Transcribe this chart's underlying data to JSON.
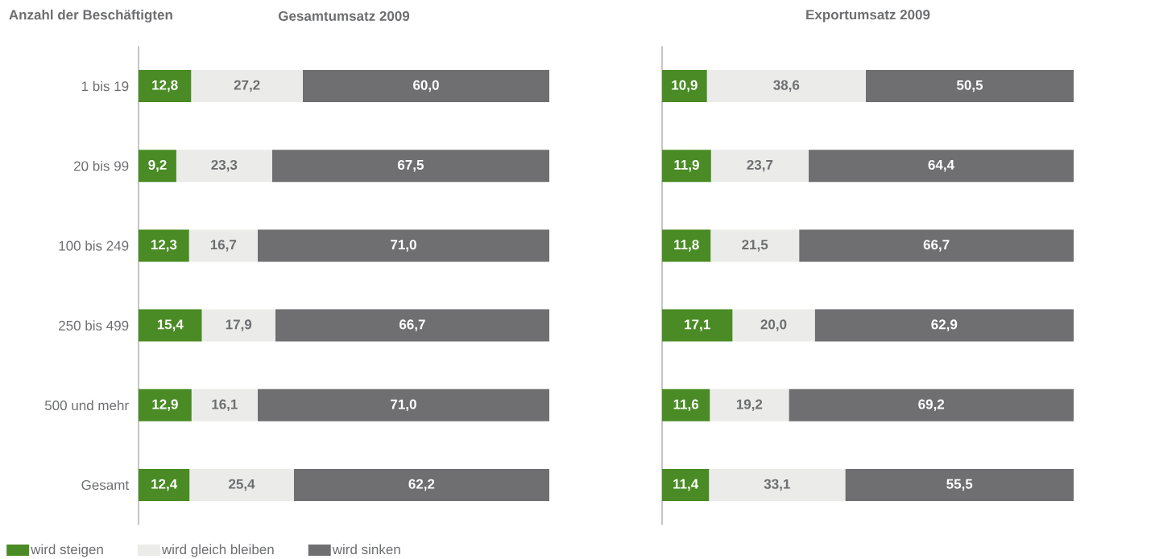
{
  "chart_data": [
    {
      "type": "bar",
      "orientation": "horizontal",
      "stacked": true,
      "title": "Gesamtumsatz 2009",
      "ylabel": "Anzahl der Beschäftigten",
      "categories": [
        "1 bis 19",
        "20 bis 99",
        "100 bis 249",
        "250 bis 499",
        "500 und mehr",
        "Gesamt"
      ],
      "tick_labels": "y",
      "legend": "bottom",
      "series": [
        {
          "name": "wird steigen",
          "color": "#4a8b25",
          "values": [
            12.8,
            9.2,
            12.3,
            15.4,
            12.9,
            12.4
          ],
          "value_labels": [
            "12,8",
            "9,2",
            "12,3",
            "15,4",
            "12,9",
            "12,4"
          ]
        },
        {
          "name": "wird gleich bleiben",
          "color": "#ebecea",
          "values": [
            27.2,
            23.3,
            16.7,
            17.9,
            16.1,
            25.4
          ],
          "value_labels": [
            "27,2",
            "23,3",
            "16,7",
            "17,9",
            "16,1",
            "25,4"
          ]
        },
        {
          "name": "wird sinken",
          "color": "#6f6f71",
          "values": [
            60.0,
            67.5,
            71.0,
            66.7,
            71.0,
            62.2
          ],
          "value_labels": [
            "60,0",
            "67,5",
            "71,0",
            "66,7",
            "71,0",
            "62,2"
          ]
        }
      ]
    },
    {
      "type": "bar",
      "orientation": "horizontal",
      "stacked": true,
      "title": "Exportumsatz 2009",
      "categories": [
        null,
        null,
        null,
        null,
        null,
        null
      ],
      "tick_labels": false,
      "series": [
        {
          "color": "#4a8b25",
          "values": [
            10.9,
            11.9,
            11.8,
            17.1,
            11.6,
            11.4
          ],
          "value_labels": [
            "10,9",
            "11,9",
            "11,8",
            "17,1",
            "11,6",
            "11,4"
          ]
        },
        {
          "color": "#ebecea",
          "values": [
            38.6,
            23.7,
            21.5,
            20.0,
            19.2,
            33.1
          ],
          "value_labels": [
            "38,6",
            "23,7",
            "21,5",
            "20,0",
            "19,2",
            "33,1"
          ]
        },
        {
          "color": "#6f6f71",
          "values": [
            50.5,
            64.4,
            66.7,
            62.9,
            69.2,
            55.5
          ],
          "value_labels": [
            "50,5",
            "64,4",
            "66,7",
            "62,9",
            "69,2",
            "55,5"
          ]
        }
      ]
    }
  ]
}
